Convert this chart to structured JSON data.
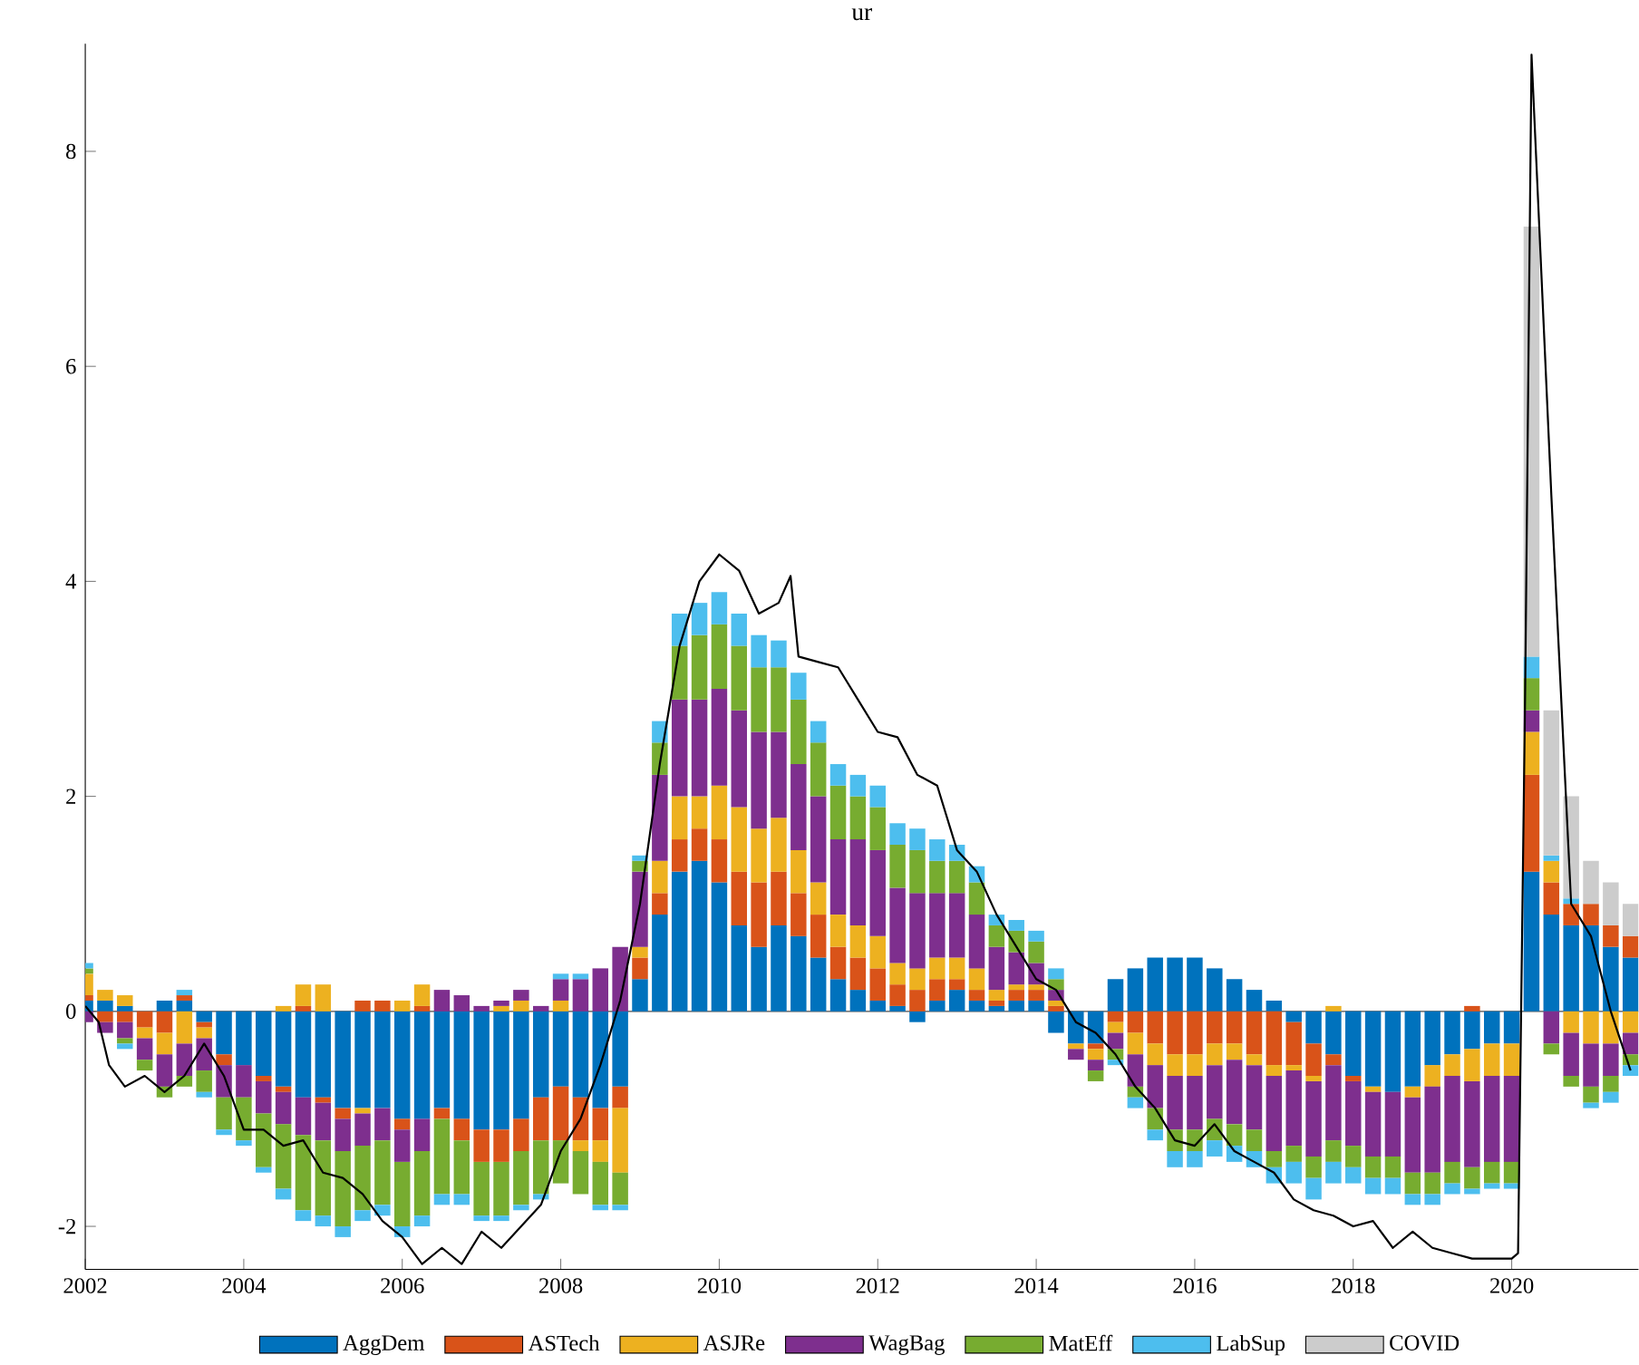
{
  "chart_data": {
    "type": "bar",
    "title": "ur",
    "stacked": true,
    "legend": "bottom",
    "ref_lines": [
      {
        "axis": "y",
        "value": 0,
        "color": "#4d4d4d"
      }
    ],
    "xlim": [
      2002,
      2021.6
    ],
    "xticks": [
      2002,
      2004,
      2006,
      2008,
      2010,
      2012,
      2014,
      2016,
      2018,
      2020
    ],
    "ylim": [
      -2.4,
      9.0
    ],
    "yticks": [
      -2,
      0,
      2,
      4,
      6,
      8
    ],
    "x": [
      2002.0,
      2002.25,
      2002.5,
      2002.75,
      2003.0,
      2003.25,
      2003.5,
      2003.75,
      2004.0,
      2004.25,
      2004.5,
      2004.75,
      2005.0,
      2005.25,
      2005.5,
      2005.75,
      2006.0,
      2006.25,
      2006.5,
      2006.75,
      2007.0,
      2007.25,
      2007.5,
      2007.75,
      2008.0,
      2008.25,
      2008.5,
      2008.75,
      2009.0,
      2009.25,
      2009.5,
      2009.75,
      2010.0,
      2010.25,
      2010.5,
      2010.75,
      2011.0,
      2011.25,
      2011.5,
      2011.75,
      2012.0,
      2012.25,
      2012.5,
      2012.75,
      2013.0,
      2013.25,
      2013.5,
      2013.75,
      2014.0,
      2014.25,
      2014.5,
      2014.75,
      2015.0,
      2015.25,
      2015.5,
      2015.75,
      2016.0,
      2016.25,
      2016.5,
      2016.75,
      2017.0,
      2017.25,
      2017.5,
      2017.75,
      2018.0,
      2018.25,
      2018.5,
      2018.75,
      2019.0,
      2019.25,
      2019.5,
      2019.75,
      2020.0,
      2020.25,
      2020.5,
      2020.75,
      2021.0,
      2021.25,
      2021.5
    ],
    "series": [
      {
        "name": "AggDem",
        "color": "#0072bd",
        "values": [
          0.1,
          0.1,
          0.05,
          0.0,
          0.1,
          0.1,
          -0.1,
          -0.4,
          -0.5,
          -0.6,
          -0.7,
          -0.8,
          -0.8,
          -0.9,
          -0.9,
          -0.9,
          -1.0,
          -1.0,
          -0.9,
          -1.0,
          -1.1,
          -1.1,
          -1.0,
          -0.8,
          -0.7,
          -0.8,
          -0.9,
          -0.7,
          0.3,
          0.9,
          1.3,
          1.4,
          1.2,
          0.8,
          0.6,
          0.8,
          0.7,
          0.5,
          0.3,
          0.2,
          0.1,
          0.05,
          -0.1,
          0.1,
          0.2,
          0.1,
          0.05,
          0.1,
          0.1,
          -0.2,
          -0.3,
          -0.3,
          0.3,
          0.4,
          0.5,
          0.5,
          0.5,
          0.4,
          0.3,
          0.2,
          0.1,
          -0.1,
          -0.3,
          -0.4,
          -0.6,
          -0.7,
          -0.75,
          -0.7,
          -0.5,
          -0.4,
          -0.35,
          -0.3,
          -0.3,
          1.3,
          0.9,
          0.8,
          0.8,
          0.6,
          0.5
        ]
      },
      {
        "name": "ASTech",
        "color": "#d95319",
        "values": [
          0.05,
          -0.1,
          -0.1,
          -0.15,
          -0.2,
          0.05,
          -0.05,
          -0.1,
          0.0,
          -0.05,
          -0.05,
          0.05,
          -0.05,
          -0.1,
          0.1,
          0.1,
          -0.1,
          0.05,
          -0.1,
          -0.2,
          -0.3,
          -0.3,
          -0.3,
          -0.4,
          -0.5,
          -0.4,
          -0.3,
          -0.2,
          0.2,
          0.2,
          0.3,
          0.3,
          0.4,
          0.5,
          0.6,
          0.5,
          0.4,
          0.4,
          0.3,
          0.3,
          0.3,
          0.2,
          0.2,
          0.2,
          0.1,
          0.1,
          0.05,
          0.1,
          0.1,
          0.05,
          0.0,
          -0.05,
          -0.1,
          -0.2,
          -0.3,
          -0.4,
          -0.4,
          -0.3,
          -0.3,
          -0.4,
          -0.5,
          -0.4,
          -0.3,
          -0.1,
          -0.05,
          0.0,
          0.0,
          0.0,
          0.0,
          0.0,
          0.05,
          0.0,
          0.0,
          0.9,
          0.3,
          0.2,
          0.2,
          0.2,
          0.2
        ]
      },
      {
        "name": "ASJRe",
        "color": "#edb120",
        "values": [
          0.2,
          0.1,
          0.1,
          -0.1,
          -0.2,
          -0.3,
          -0.1,
          0.0,
          0.0,
          0.0,
          0.05,
          0.2,
          0.25,
          0.0,
          -0.05,
          0.0,
          0.1,
          0.2,
          0.0,
          0.0,
          0.0,
          0.05,
          0.1,
          0.0,
          0.1,
          -0.1,
          -0.2,
          -0.6,
          0.1,
          0.3,
          0.4,
          0.3,
          0.5,
          0.6,
          0.5,
          0.5,
          0.4,
          0.3,
          0.3,
          0.3,
          0.3,
          0.2,
          0.2,
          0.2,
          0.2,
          0.2,
          0.1,
          0.05,
          0.05,
          0.05,
          -0.05,
          -0.1,
          -0.1,
          -0.2,
          -0.2,
          -0.2,
          -0.2,
          -0.2,
          -0.15,
          -0.1,
          -0.1,
          -0.05,
          -0.05,
          0.05,
          0.0,
          -0.05,
          0.0,
          -0.1,
          -0.2,
          -0.2,
          -0.3,
          -0.3,
          -0.3,
          0.4,
          0.2,
          -0.2,
          -0.3,
          -0.3,
          -0.2
        ]
      },
      {
        "name": "WagBag",
        "color": "#7e2f8e",
        "values": [
          -0.1,
          -0.1,
          -0.15,
          -0.2,
          -0.3,
          -0.3,
          -0.3,
          -0.3,
          -0.3,
          -0.3,
          -0.3,
          -0.35,
          -0.35,
          -0.3,
          -0.3,
          -0.3,
          -0.3,
          -0.3,
          0.2,
          0.15,
          0.05,
          0.05,
          0.1,
          0.05,
          0.2,
          0.3,
          0.4,
          0.6,
          0.7,
          0.8,
          0.9,
          0.9,
          0.9,
          0.9,
          0.9,
          0.8,
          0.8,
          0.8,
          0.7,
          0.8,
          0.8,
          0.7,
          0.7,
          0.6,
          0.6,
          0.5,
          0.4,
          0.3,
          0.2,
          0.1,
          -0.1,
          -0.1,
          -0.15,
          -0.3,
          -0.4,
          -0.5,
          -0.5,
          -0.5,
          -0.6,
          -0.6,
          -0.7,
          -0.7,
          -0.7,
          -0.7,
          -0.6,
          -0.6,
          -0.6,
          -0.7,
          -0.8,
          -0.8,
          -0.8,
          -0.8,
          -0.8,
          0.2,
          -0.3,
          -0.4,
          -0.4,
          -0.3,
          -0.2
        ]
      },
      {
        "name": "MatEff",
        "color": "#77ac30",
        "values": [
          0.05,
          0.0,
          -0.05,
          -0.1,
          -0.1,
          -0.1,
          -0.2,
          -0.3,
          -0.4,
          -0.5,
          -0.6,
          -0.7,
          -0.7,
          -0.7,
          -0.6,
          -0.6,
          -0.6,
          -0.6,
          -0.7,
          -0.5,
          -0.5,
          -0.5,
          -0.5,
          -0.5,
          -0.4,
          -0.4,
          -0.4,
          -0.3,
          0.1,
          0.3,
          0.5,
          0.6,
          0.6,
          0.6,
          0.6,
          0.6,
          0.6,
          0.5,
          0.5,
          0.4,
          0.4,
          0.4,
          0.4,
          0.3,
          0.3,
          0.3,
          0.2,
          0.2,
          0.2,
          0.1,
          0.0,
          -0.1,
          -0.1,
          -0.1,
          -0.2,
          -0.2,
          -0.2,
          -0.2,
          -0.2,
          -0.2,
          -0.15,
          -0.15,
          -0.2,
          -0.2,
          -0.2,
          -0.2,
          -0.2,
          -0.2,
          -0.2,
          -0.2,
          -0.2,
          -0.2,
          -0.2,
          0.3,
          -0.1,
          -0.1,
          -0.15,
          -0.15,
          -0.1
        ]
      },
      {
        "name": "LabSup",
        "color": "#4dbeee",
        "values": [
          0.05,
          0.0,
          -0.05,
          0.0,
          0.0,
          0.05,
          -0.05,
          -0.05,
          -0.05,
          -0.05,
          -0.1,
          -0.1,
          -0.1,
          -0.1,
          -0.1,
          -0.1,
          -0.1,
          -0.1,
          -0.1,
          -0.1,
          -0.05,
          -0.05,
          -0.05,
          -0.05,
          0.05,
          0.05,
          -0.05,
          -0.05,
          0.05,
          0.2,
          0.3,
          0.3,
          0.3,
          0.3,
          0.3,
          0.25,
          0.25,
          0.2,
          0.2,
          0.2,
          0.2,
          0.2,
          0.2,
          0.2,
          0.15,
          0.15,
          0.1,
          0.1,
          0.1,
          0.1,
          0.0,
          0.0,
          -0.05,
          -0.1,
          -0.1,
          -0.15,
          -0.15,
          -0.15,
          -0.15,
          -0.15,
          -0.15,
          -0.2,
          -0.2,
          -0.2,
          -0.15,
          -0.15,
          -0.15,
          -0.1,
          -0.1,
          -0.1,
          -0.05,
          -0.05,
          -0.05,
          0.2,
          0.05,
          0.05,
          -0.05,
          -0.1,
          -0.1
        ]
      },
      {
        "name": "COVID",
        "color": "#cccccc",
        "values": [
          null,
          null,
          null,
          null,
          null,
          null,
          null,
          null,
          null,
          null,
          null,
          null,
          null,
          null,
          null,
          null,
          null,
          null,
          null,
          null,
          null,
          null,
          null,
          null,
          null,
          null,
          null,
          null,
          null,
          null,
          null,
          null,
          null,
          null,
          null,
          null,
          null,
          null,
          null,
          null,
          null,
          null,
          null,
          null,
          null,
          null,
          null,
          null,
          null,
          null,
          null,
          null,
          null,
          null,
          null,
          null,
          null,
          null,
          null,
          null,
          null,
          null,
          null,
          null,
          null,
          null,
          null,
          null,
          null,
          null,
          null,
          null,
          null,
          4.0,
          1.35,
          0.95,
          0.4,
          0.4,
          0.3
        ]
      },
      {
        "type": "line",
        "color": "#000000",
        "x": [
          2002.0,
          2002.17,
          2002.3,
          2002.5,
          2002.75,
          2003.0,
          2003.25,
          2003.5,
          2003.75,
          2004.0,
          2004.25,
          2004.5,
          2004.75,
          2005.0,
          2005.25,
          2005.5,
          2005.75,
          2006.0,
          2006.25,
          2006.5,
          2006.75,
          2007.0,
          2007.25,
          2007.5,
          2007.75,
          2008.0,
          2008.25,
          2008.5,
          2008.75,
          2009.0,
          2009.25,
          2009.5,
          2009.75,
          2010.0,
          2010.25,
          2010.5,
          2010.75,
          2010.9,
          2011.0,
          2011.25,
          2011.5,
          2011.75,
          2012.0,
          2012.25,
          2012.5,
          2012.75,
          2013.0,
          2013.25,
          2013.5,
          2013.75,
          2014.0,
          2014.25,
          2014.5,
          2014.75,
          2015.0,
          2015.25,
          2015.5,
          2015.75,
          2016.0,
          2016.25,
          2016.5,
          2016.75,
          2017.0,
          2017.25,
          2017.5,
          2017.75,
          2018.0,
          2018.25,
          2018.5,
          2018.75,
          2019.0,
          2019.25,
          2019.5,
          2019.75,
          2020.0,
          2020.08,
          2020.17,
          2020.25,
          2020.5,
          2020.75,
          2021.0,
          2021.25,
          2021.5
        ],
        "values": [
          0.05,
          -0.1,
          -0.5,
          -0.7,
          -0.6,
          -0.75,
          -0.6,
          -0.3,
          -0.6,
          -1.1,
          -1.1,
          -1.25,
          -1.2,
          -1.5,
          -1.55,
          -1.7,
          -1.95,
          -2.1,
          -2.35,
          -2.2,
          -2.35,
          -2.05,
          -2.2,
          -2.0,
          -1.8,
          -1.3,
          -1.0,
          -0.5,
          0.1,
          1.0,
          2.3,
          3.4,
          4.0,
          4.25,
          4.1,
          3.7,
          3.8,
          4.05,
          3.3,
          3.25,
          3.2,
          2.9,
          2.6,
          2.55,
          2.2,
          2.1,
          1.5,
          1.3,
          0.9,
          0.6,
          0.3,
          0.2,
          -0.1,
          -0.2,
          -0.4,
          -0.7,
          -0.9,
          -1.2,
          -1.25,
          -1.05,
          -1.3,
          -1.4,
          -1.5,
          -1.75,
          -1.85,
          -1.9,
          -2.0,
          -1.95,
          -2.2,
          -2.05,
          -2.2,
          -2.25,
          -2.3,
          -2.3,
          -2.3,
          -2.25,
          3.0,
          8.9,
          4.8,
          1.0,
          0.7,
          0.0,
          -0.55
        ]
      }
    ]
  }
}
